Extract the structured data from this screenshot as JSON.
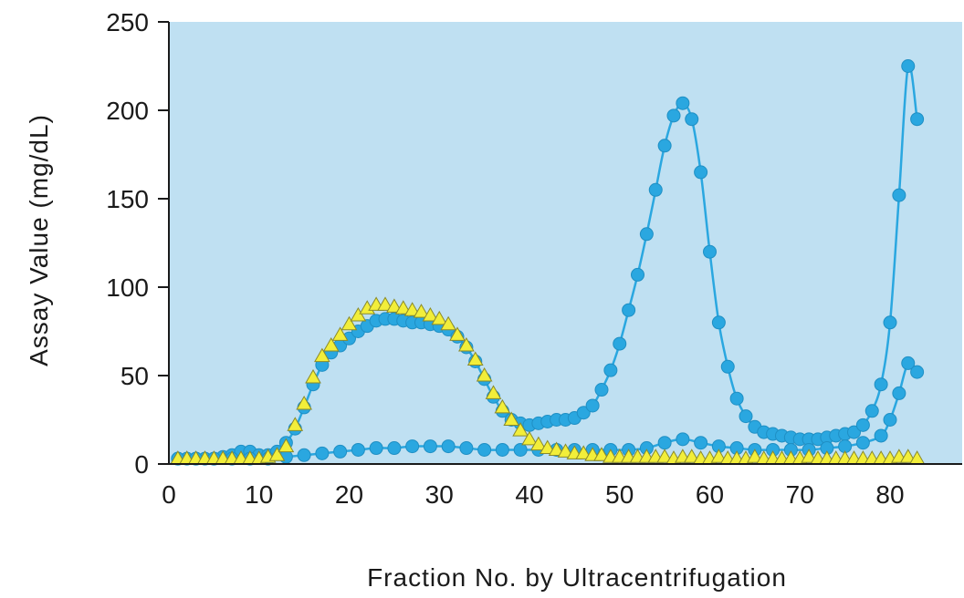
{
  "chart_data": {
    "type": "line",
    "title": "",
    "xlabel": "Fraction No. by Ultracentrifugation",
    "ylabel": "Assay Value (mg/dL)",
    "xlim": [
      0,
      88
    ],
    "ylim": [
      0,
      250
    ],
    "xticks": [
      0,
      10,
      20,
      30,
      40,
      50,
      60,
      70,
      80
    ],
    "yticks": [
      0,
      50,
      100,
      150,
      200,
      250
    ],
    "grid": false,
    "legend": "none",
    "colors": {
      "plot_bg": "#bfe0f2",
      "circle": "#2aa7e0",
      "circle_stroke": "#1f8fc4",
      "triangle": "#f2ee3a",
      "triangle_stroke": "#8a8a2a",
      "axis": "#1a1a1a"
    },
    "series": [
      {
        "marker": "circle",
        "connected": true,
        "x": [
          1,
          2,
          3,
          4,
          5,
          6,
          7,
          8,
          9,
          10,
          11,
          12,
          13,
          14,
          15,
          16,
          17,
          18,
          19,
          20,
          21,
          22,
          23,
          24,
          25,
          26,
          27,
          28,
          29,
          30,
          31,
          32,
          33,
          34,
          35,
          36,
          37,
          38,
          39,
          40,
          41,
          42,
          43,
          44,
          45,
          46,
          47,
          48,
          49,
          50,
          51,
          52,
          53,
          54,
          55,
          56,
          57,
          58,
          59,
          60,
          61,
          62,
          63,
          64,
          65,
          66,
          67,
          68,
          69,
          70,
          71,
          72,
          73,
          74,
          75,
          76,
          77,
          78,
          79,
          80,
          81,
          82,
          83
        ],
        "values": [
          3,
          3,
          3,
          3,
          3,
          4,
          5,
          7,
          7,
          5,
          5,
          7,
          12,
          20,
          32,
          45,
          56,
          63,
          67,
          71,
          75,
          78,
          81,
          82,
          82,
          81,
          80,
          80,
          79,
          78,
          76,
          72,
          66,
          58,
          48,
          38,
          30,
          25,
          23,
          22,
          23,
          24,
          25,
          25,
          26,
          29,
          33,
          42,
          53,
          68,
          87,
          107,
          130,
          155,
          180,
          197,
          204,
          195,
          165,
          120,
          80,
          55,
          37,
          27,
          21,
          18,
          17,
          16,
          15,
          14,
          14,
          14,
          15,
          16,
          17,
          18,
          22,
          30,
          45,
          80,
          152,
          225,
          195
        ]
      },
      {
        "marker": "circle",
        "connected": true,
        "x": [
          1,
          3,
          5,
          7,
          9,
          11,
          13,
          15,
          17,
          19,
          21,
          23,
          25,
          27,
          29,
          31,
          33,
          35,
          37,
          39,
          41,
          43,
          45,
          47,
          49,
          51,
          53,
          55,
          57,
          59,
          61,
          63,
          65,
          67,
          69,
          71,
          73,
          75,
          77,
          79,
          80,
          81,
          82,
          83
        ],
        "values": [
          3,
          3,
          3,
          3,
          3,
          3,
          4,
          5,
          6,
          7,
          8,
          9,
          9,
          10,
          10,
          10,
          9,
          8,
          8,
          8,
          8,
          8,
          8,
          8,
          8,
          8,
          9,
          12,
          14,
          12,
          10,
          9,
          8,
          8,
          8,
          8,
          9,
          10,
          12,
          16,
          25,
          40,
          57,
          52
        ]
      },
      {
        "marker": "triangle",
        "connected": false,
        "x": [
          1,
          2,
          3,
          4,
          5,
          6,
          7,
          8,
          9,
          10,
          11,
          12,
          13,
          14,
          15,
          16,
          17,
          18,
          19,
          20,
          21,
          22,
          23,
          24,
          25,
          26,
          27,
          28,
          29,
          30,
          31,
          32,
          33,
          34,
          35,
          36,
          37,
          38,
          39,
          40,
          41,
          42,
          43,
          44,
          45,
          46,
          47,
          48,
          49,
          50,
          51,
          52,
          53,
          54,
          55,
          56,
          57,
          58,
          59,
          60,
          61,
          62,
          63,
          64,
          65,
          66,
          67,
          68,
          69,
          70,
          71,
          72,
          73,
          74,
          75,
          76,
          77,
          78,
          79,
          80,
          81,
          82,
          83
        ],
        "values": [
          3,
          3,
          3,
          3,
          3,
          3,
          3,
          3,
          3,
          3,
          4,
          5,
          10,
          22,
          34,
          49,
          61,
          67,
          73,
          79,
          84,
          88,
          90,
          90,
          89,
          88,
          87,
          86,
          84,
          82,
          79,
          73,
          67,
          59,
          50,
          40,
          32,
          25,
          19,
          14,
          11,
          9,
          8,
          7,
          6,
          6,
          5,
          5,
          4,
          4,
          4,
          4,
          4,
          4,
          4,
          3,
          4,
          4,
          3,
          3,
          4,
          3,
          3,
          3,
          4,
          3,
          3,
          3,
          3,
          3,
          4,
          3,
          3,
          3,
          3,
          3,
          3,
          3,
          3,
          3,
          4,
          4,
          3
        ]
      }
    ]
  }
}
